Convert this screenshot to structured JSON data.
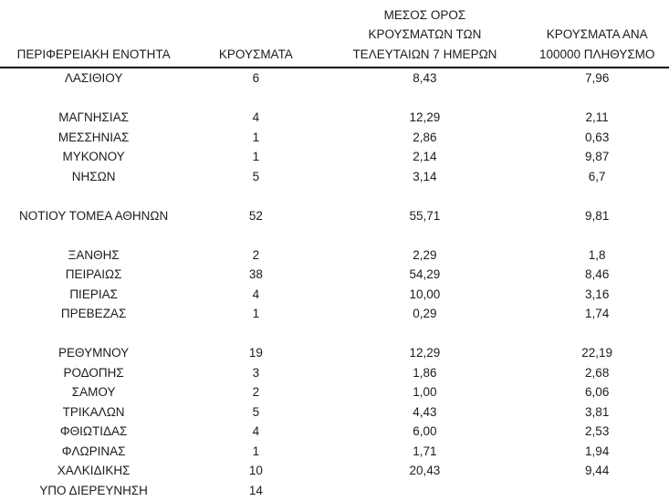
{
  "page": {
    "background_color": "#ffffff",
    "text_color": "#1c1c1c",
    "rule_color": "#000000"
  },
  "table": {
    "columns": [
      {
        "key": "name",
        "label": "ΠΕΡΙΦΕΡΕΙΑΚΗ ΕΝΟΤΗΤΑ"
      },
      {
        "key": "cases",
        "label": "ΚΡΟΥΣΜΑΤΑ"
      },
      {
        "key": "avg7",
        "label": "ΜΕΣΟΣ ΟΡΟΣ\nΚΡΟΥΣΜΑΤΩΝ ΤΩΝ\nΤΕΛΕΥΤΑΙΩΝ 7 ΗΜΕΡΩΝ"
      },
      {
        "key": "per100k",
        "label": "ΚΡΟΥΣΜΑΤΑ ΑΝΑ\n100000 ΠΛΗΘΥΣΜΟ"
      }
    ],
    "rows": [
      {
        "name": "ΛΑΣΙΘΙΟΥ",
        "cases": "6",
        "avg7": "8,43",
        "per100k": "7,96"
      },
      {
        "spacer": true
      },
      {
        "name": "ΜΑΓΝΗΣΙΑΣ",
        "cases": "4",
        "avg7": "12,29",
        "per100k": "2,11"
      },
      {
        "name": "ΜΕΣΣΗΝΙΑΣ",
        "cases": "1",
        "avg7": "2,86",
        "per100k": "0,63"
      },
      {
        "name": "ΜΥΚΟΝΟΥ",
        "cases": "1",
        "avg7": "2,14",
        "per100k": "9,87"
      },
      {
        "name": "ΝΗΣΩΝ",
        "cases": "5",
        "avg7": "3,14",
        "per100k": "6,7"
      },
      {
        "spacer": true
      },
      {
        "name": "ΝΟΤΙΟΥ ΤΟΜΕΑ ΑΘΗΝΩΝ",
        "cases": "52",
        "avg7": "55,71",
        "per100k": "9,81"
      },
      {
        "spacer": true
      },
      {
        "name": "ΞΑΝΘΗΣ",
        "cases": "2",
        "avg7": "2,29",
        "per100k": "1,8"
      },
      {
        "name": "ΠΕΙΡΑΙΩΣ",
        "cases": "38",
        "avg7": "54,29",
        "per100k": "8,46"
      },
      {
        "name": "ΠΙΕΡΙΑΣ",
        "cases": "4",
        "avg7": "10,00",
        "per100k": "3,16"
      },
      {
        "name": "ΠΡΕΒΕΖΑΣ",
        "cases": "1",
        "avg7": "0,29",
        "per100k": "1,74"
      },
      {
        "spacer": true
      },
      {
        "name": "ΡΕΘΥΜΝΟΥ",
        "cases": "19",
        "avg7": "12,29",
        "per100k": "22,19"
      },
      {
        "name": "ΡΟΔΟΠΗΣ",
        "cases": "3",
        "avg7": "1,86",
        "per100k": "2,68"
      },
      {
        "name": "ΣΑΜΟΥ",
        "cases": "2",
        "avg7": "1,00",
        "per100k": "6,06"
      },
      {
        "name": "ΤΡΙΚΑΛΩΝ",
        "cases": "5",
        "avg7": "4,43",
        "per100k": "3,81"
      },
      {
        "name": "ΦΘΙΩΤΙΔΑΣ",
        "cases": "4",
        "avg7": "6,00",
        "per100k": "2,53"
      },
      {
        "name": "ΦΛΩΡΙΝΑΣ",
        "cases": "1",
        "avg7": "1,71",
        "per100k": "1,94"
      },
      {
        "name": "ΧΑΛΚΙΔΙΚΗΣ",
        "cases": "10",
        "avg7": "20,43",
        "per100k": "9,44"
      },
      {
        "name": "ΥΠΟ ΔΙΕΡΕΥΝΗΣΗ",
        "cases": "14",
        "avg7": "",
        "per100k": ""
      }
    ]
  },
  "chart_data": {
    "type": "table",
    "title": "",
    "columns": [
      "ΠΕΡΙΦΕΡΕΙΑΚΗ ΕΝΟΤΗΤΑ",
      "ΚΡΟΥΣΜΑΤΑ",
      "ΜΕΣΟΣ ΟΡΟΣ ΚΡΟΥΣΜΑΤΩΝ ΤΩΝ ΤΕΛΕΥΤΑΙΩΝ 7 ΗΜΕΡΩΝ",
      "ΚΡΟΥΣΜΑΤΑ ΑΝΑ 100000 ΠΛΗΘΥΣΜΟ"
    ],
    "rows": [
      [
        "ΛΑΣΙΘΙΟΥ",
        6,
        8.43,
        7.96
      ],
      [
        "ΜΑΓΝΗΣΙΑΣ",
        4,
        12.29,
        2.11
      ],
      [
        "ΜΕΣΣΗΝΙΑΣ",
        1,
        2.86,
        0.63
      ],
      [
        "ΜΥΚΟΝΟΥ",
        1,
        2.14,
        9.87
      ],
      [
        "ΝΗΣΩΝ",
        5,
        3.14,
        6.7
      ],
      [
        "ΝΟΤΙΟΥ ΤΟΜΕΑ ΑΘΗΝΩΝ",
        52,
        55.71,
        9.81
      ],
      [
        "ΞΑΝΘΗΣ",
        2,
        2.29,
        1.8
      ],
      [
        "ΠΕΙΡΑΙΩΣ",
        38,
        54.29,
        8.46
      ],
      [
        "ΠΙΕΡΙΑΣ",
        4,
        10.0,
        3.16
      ],
      [
        "ΠΡΕΒΕΖΑΣ",
        1,
        0.29,
        1.74
      ],
      [
        "ΡΕΘΥΜΝΟΥ",
        19,
        12.29,
        22.19
      ],
      [
        "ΡΟΔΟΠΗΣ",
        3,
        1.86,
        2.68
      ],
      [
        "ΣΑΜΟΥ",
        2,
        1.0,
        6.06
      ],
      [
        "ΤΡΙΚΑΛΩΝ",
        5,
        4.43,
        3.81
      ],
      [
        "ΦΘΙΩΤΙΔΑΣ",
        4,
        6.0,
        2.53
      ],
      [
        "ΦΛΩΡΙΝΑΣ",
        1,
        1.71,
        1.94
      ],
      [
        "ΧΑΛΚΙΔΙΚΗΣ",
        10,
        20.43,
        9.44
      ],
      [
        "ΥΠΟ ΔΙΕΡΕΥΝΗΣΗ",
        14,
        null,
        null
      ]
    ]
  }
}
